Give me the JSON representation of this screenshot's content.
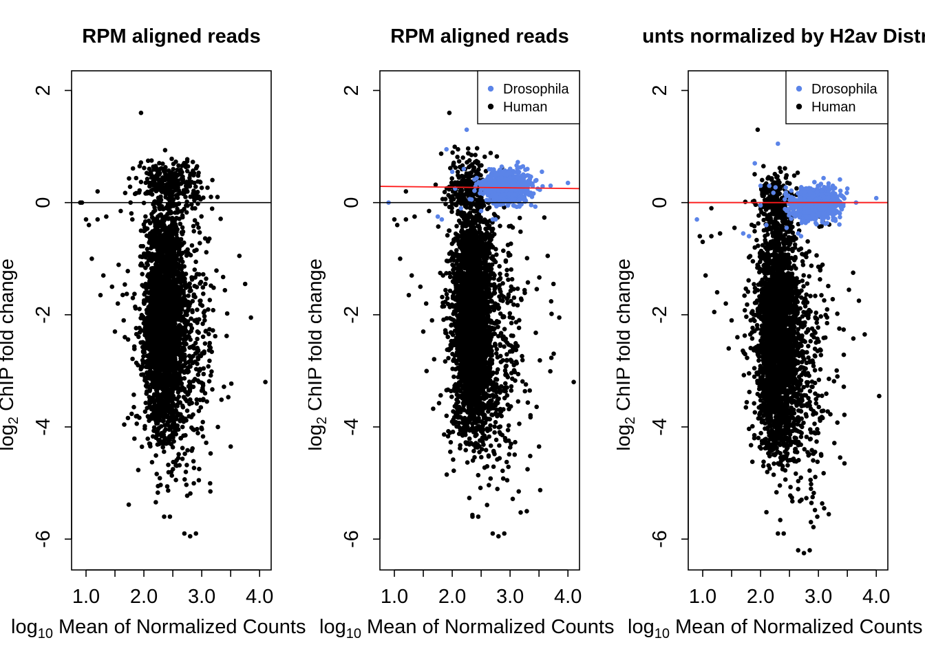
{
  "colors": {
    "human": "#000000",
    "drosophila": "#5B84E8",
    "fit_line": "#FF1A1A",
    "zero_line": "#000000"
  },
  "chart_data": [
    {
      "type": "scatter",
      "title": "RPM aligned reads",
      "xlabel": "log10 Mean of Normalized Counts",
      "ylabel": "log2 ChIP fold change",
      "xlim": [
        0.75,
        4.2
      ],
      "ylim": [
        -6.55,
        2.35
      ],
      "xticks": [
        "1.0",
        "2.0",
        "3.0",
        "4.0"
      ],
      "xtick_values": [
        1.0,
        1.5,
        2.0,
        2.5,
        3.0,
        3.5,
        4.0
      ],
      "yticks": [
        "2",
        "0",
        "-2",
        "-4",
        "-6"
      ],
      "ytick_values": [
        2,
        0,
        -2,
        -4,
        -6
      ],
      "hline": 0,
      "legend": null,
      "series": [
        {
          "name": "Human",
          "color_key": "human",
          "clouds": [
            {
              "cx": 2.35,
              "cy": -2.1,
              "sx": 0.16,
              "sy": 1.0,
              "n": 2600,
              "clip": [
                -4.4,
                0.45
              ]
            },
            {
              "cx": 2.6,
              "cy": -2.6,
              "sx": 0.35,
              "sy": 1.2,
              "n": 650,
              "clip": [
                -5.6,
                0.2
              ]
            },
            {
              "cx": 2.45,
              "cy": 0.35,
              "sx": 0.28,
              "sy": 0.22,
              "n": 260,
              "clip": [
                -0.3,
                1.0
              ]
            }
          ],
          "points": [
            [
              0.9,
              0.0
            ],
            [
              0.93,
              0.0
            ],
            [
              1.0,
              -0.3
            ],
            [
              1.05,
              -0.4
            ],
            [
              1.2,
              -0.3
            ],
            [
              1.2,
              0.2
            ],
            [
              1.35,
              -0.25
            ],
            [
              1.6,
              -0.15
            ],
            [
              1.1,
              -1.0
            ],
            [
              1.3,
              -1.3
            ],
            [
              1.45,
              -1.5
            ],
            [
              1.55,
              -1.8
            ],
            [
              1.25,
              -1.65
            ],
            [
              1.65,
              -2.1
            ],
            [
              1.5,
              -2.3
            ],
            [
              1.95,
              1.6
            ],
            [
              1.95,
              -0.5
            ],
            [
              1.8,
              -0.3
            ],
            [
              3.65,
              -0.95
            ],
            [
              3.75,
              -1.45
            ],
            [
              3.85,
              -2.05
            ],
            [
              4.1,
              -3.2
            ],
            [
              3.5,
              -4.35
            ],
            [
              2.9,
              -5.9
            ],
            [
              2.95,
              -4.95
            ],
            [
              3.15,
              -5.15
            ],
            [
              2.35,
              -5.6
            ],
            [
              2.7,
              -5.9
            ],
            [
              2.8,
              -5.95
            ],
            [
              2.45,
              -5.6
            ]
          ]
        }
      ]
    },
    {
      "type": "scatter",
      "title": "RPM aligned reads",
      "xlabel": "log10 Mean of Normalized Counts",
      "ylabel": "log2 ChIP fold change",
      "xlim": [
        0.75,
        4.2
      ],
      "ylim": [
        -6.55,
        2.35
      ],
      "xticks": [
        "1.0",
        "2.0",
        "3.0",
        "4.0"
      ],
      "xtick_values": [
        1.0,
        1.5,
        2.0,
        2.5,
        3.0,
        3.5,
        4.0
      ],
      "yticks": [
        "2",
        "0",
        "-2",
        "-4",
        "-6"
      ],
      "ytick_values": [
        2,
        0,
        -2,
        -4,
        -6
      ],
      "hline": 0,
      "fit_line": {
        "x": [
          0.75,
          4.2
        ],
        "y": [
          0.29,
          0.25
        ]
      },
      "legend": {
        "position": "top-right",
        "entries": [
          "Drosophila",
          "Human"
        ]
      },
      "series": [
        {
          "name": "Human",
          "color_key": "human",
          "clouds": [
            {
              "cx": 2.35,
              "cy": -2.1,
              "sx": 0.16,
              "sy": 1.0,
              "n": 2600,
              "clip": [
                -4.4,
                0.45
              ]
            },
            {
              "cx": 2.6,
              "cy": -2.6,
              "sx": 0.35,
              "sy": 1.2,
              "n": 650,
              "clip": [
                -5.6,
                0.2
              ]
            },
            {
              "cx": 2.3,
              "cy": 0.3,
              "sx": 0.18,
              "sy": 0.3,
              "n": 220,
              "clip": [
                -0.3,
                1.0
              ]
            }
          ],
          "points": [
            [
              1.0,
              -0.3
            ],
            [
              1.05,
              -0.4
            ],
            [
              1.2,
              -0.3
            ],
            [
              1.2,
              0.2
            ],
            [
              1.35,
              -0.25
            ],
            [
              1.6,
              -0.15
            ],
            [
              1.1,
              -1.0
            ],
            [
              1.3,
              -1.3
            ],
            [
              1.45,
              -1.5
            ],
            [
              1.55,
              -1.8
            ],
            [
              1.25,
              -1.65
            ],
            [
              1.65,
              -2.1
            ],
            [
              1.5,
              -2.3
            ],
            [
              1.95,
              1.6
            ],
            [
              1.95,
              -0.5
            ],
            [
              2.1,
              0.95
            ],
            [
              2.4,
              0.85
            ],
            [
              3.65,
              -0.95
            ],
            [
              3.75,
              -1.45
            ],
            [
              3.85,
              -2.05
            ],
            [
              4.1,
              -3.2
            ],
            [
              3.5,
              -4.35
            ],
            [
              2.9,
              -5.9
            ],
            [
              2.95,
              -4.95
            ],
            [
              3.15,
              -5.15
            ],
            [
              2.35,
              -5.6
            ],
            [
              2.7,
              -5.9
            ],
            [
              2.8,
              -5.95
            ],
            [
              2.45,
              -5.6
            ]
          ]
        },
        {
          "name": "Drosophila",
          "color_key": "drosophila",
          "clouds": [
            {
              "cx": 2.95,
              "cy": 0.28,
              "sx": 0.2,
              "sy": 0.14,
              "n": 900,
              "clip": [
                -0.1,
                0.75
              ]
            }
          ],
          "points": [
            [
              0.9,
              0.0
            ],
            [
              1.75,
              -0.25
            ],
            [
              1.82,
              -0.3
            ],
            [
              1.9,
              0.95
            ],
            [
              2.0,
              0.55
            ],
            [
              2.25,
              1.3
            ],
            [
              2.2,
              0.6
            ],
            [
              2.05,
              0.25
            ],
            [
              2.5,
              -0.15
            ],
            [
              2.7,
              -0.3
            ],
            [
              2.75,
              -0.3
            ],
            [
              3.3,
              0.6
            ],
            [
              3.55,
              0.55
            ],
            [
              4.0,
              0.35
            ],
            [
              3.7,
              0.3
            ],
            [
              2.15,
              -0.1
            ]
          ]
        }
      ]
    },
    {
      "type": "scatter",
      "title": "unts normalized by H2av Distri",
      "xlabel": "log10 Mean of Normalized Counts",
      "ylabel": "log2 ChIP fold change",
      "xlim": [
        0.75,
        4.2
      ],
      "ylim": [
        -6.55,
        2.35
      ],
      "xticks": [
        "1.0",
        "2.0",
        "3.0",
        "4.0"
      ],
      "xtick_values": [
        1.0,
        1.5,
        2.0,
        2.5,
        3.0,
        3.5,
        4.0
      ],
      "yticks": [
        "2",
        "0",
        "-2",
        "-4",
        "-6"
      ],
      "ytick_values": [
        2,
        0,
        -2,
        -4,
        -6
      ],
      "hline": 0,
      "fit_line": {
        "x": [
          0.75,
          4.2
        ],
        "y": [
          0.0,
          0.0
        ]
      },
      "legend": {
        "position": "top-right",
        "entries": [
          "Drosophila",
          "Human"
        ]
      },
      "series": [
        {
          "name": "Human",
          "color_key": "human",
          "clouds": [
            {
              "cx": 2.3,
              "cy": -2.4,
              "sx": 0.16,
              "sy": 1.0,
              "n": 2600,
              "clip": [
                -4.7,
                0.2
              ]
            },
            {
              "cx": 2.55,
              "cy": -2.9,
              "sx": 0.35,
              "sy": 1.2,
              "n": 650,
              "clip": [
                -5.9,
                -0.1
              ]
            },
            {
              "cx": 2.25,
              "cy": 0.0,
              "sx": 0.18,
              "sy": 0.3,
              "n": 220,
              "clip": [
                -0.6,
                0.7
              ]
            }
          ],
          "points": [
            [
              0.95,
              -0.6
            ],
            [
              1.0,
              -0.7
            ],
            [
              1.15,
              -0.6
            ],
            [
              1.15,
              -0.1
            ],
            [
              1.3,
              -0.55
            ],
            [
              1.55,
              -0.45
            ],
            [
              1.05,
              -1.3
            ],
            [
              1.25,
              -1.6
            ],
            [
              1.4,
              -1.8
            ],
            [
              1.5,
              -2.1
            ],
            [
              1.2,
              -1.95
            ],
            [
              1.6,
              -2.4
            ],
            [
              1.45,
              -2.6
            ],
            [
              1.95,
              1.3
            ],
            [
              1.9,
              -0.8
            ],
            [
              2.05,
              0.65
            ],
            [
              2.35,
              0.55
            ],
            [
              3.6,
              -1.25
            ],
            [
              3.7,
              -1.75
            ],
            [
              3.8,
              -2.35
            ],
            [
              4.05,
              -3.45
            ],
            [
              3.45,
              -4.65
            ],
            [
              2.85,
              -6.2
            ],
            [
              2.9,
              -5.25
            ],
            [
              3.1,
              -5.45
            ],
            [
              2.3,
              -5.9
            ],
            [
              2.65,
              -6.2
            ],
            [
              2.75,
              -6.25
            ],
            [
              2.4,
              -5.9
            ]
          ]
        },
        {
          "name": "Drosophila",
          "color_key": "drosophila",
          "clouds": [
            {
              "cx": 2.95,
              "cy": -0.02,
              "sx": 0.2,
              "sy": 0.14,
              "n": 900,
              "clip": [
                -0.4,
                0.45
              ]
            }
          ],
          "points": [
            [
              0.9,
              -0.3
            ],
            [
              1.7,
              -0.55
            ],
            [
              1.8,
              -0.6
            ],
            [
              1.9,
              0.7
            ],
            [
              2.0,
              0.3
            ],
            [
              2.3,
              1.05
            ],
            [
              2.15,
              0.3
            ],
            [
              2.0,
              -0.05
            ],
            [
              2.45,
              -0.45
            ],
            [
              2.65,
              -0.55
            ],
            [
              2.7,
              -0.6
            ],
            [
              3.25,
              0.3
            ],
            [
              3.5,
              0.25
            ],
            [
              4.0,
              0.08
            ],
            [
              3.65,
              0.0
            ],
            [
              2.1,
              -0.4
            ]
          ]
        }
      ]
    }
  ]
}
